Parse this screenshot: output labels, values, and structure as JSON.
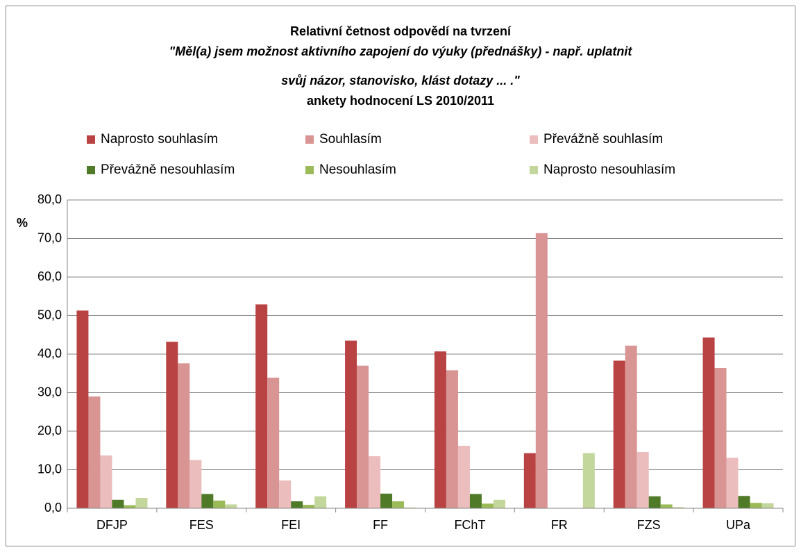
{
  "chart_data": {
    "type": "bar",
    "title": [
      "Relativní četnost odpovědí na tvrzení",
      "\"Měl(a) jsem možnost aktivního zapojení do výuky (přednášky) - např. uplatnit",
      "svůj názor, stanovisko, klást dotazy ... .\"",
      "ankety hodnocení LS 2010/2011"
    ],
    "y_label": "%",
    "categories": [
      "DFJP",
      "FES",
      "FEI",
      "FF",
      "FChT",
      "FR",
      "FZS",
      "UPa"
    ],
    "series": [
      {
        "name": "Naprosto souhlasím",
        "color": "#b94343",
        "values": [
          51.3,
          43.2,
          52.9,
          43.5,
          40.7,
          14.3,
          38.3,
          44.3
        ]
      },
      {
        "name": "Souhlasím",
        "color": "#d99594",
        "values": [
          29.0,
          37.6,
          33.9,
          37.0,
          35.8,
          71.4,
          42.2,
          36.4
        ]
      },
      {
        "name": "Převážně souhlasím",
        "color": "#ebbdbd",
        "values": [
          13.7,
          12.5,
          7.2,
          13.5,
          16.2,
          0,
          14.6,
          13.1
        ]
      },
      {
        "name": "Převážně nesouhlasím",
        "color": "#4f7a28",
        "values": [
          2.2,
          3.7,
          1.8,
          3.8,
          3.7,
          0,
          3.1,
          3.2
        ]
      },
      {
        "name": "Nesouhlasím",
        "color": "#9bbb59",
        "values": [
          0.8,
          2.0,
          0.9,
          1.8,
          1.2,
          0,
          1.0,
          1.4
        ]
      },
      {
        "name": "Naprosto nesouhlasím",
        "color": "#c3d69b",
        "values": [
          2.7,
          1.0,
          3.1,
          0.2,
          2.2,
          14.3,
          0.3,
          1.3
        ]
      }
    ],
    "ylim": [
      0,
      80
    ],
    "yticks": [
      {
        "value": 0,
        "label": "0,0"
      },
      {
        "value": 10,
        "label": "10,0"
      },
      {
        "value": 20,
        "label": "20,0"
      },
      {
        "value": 30,
        "label": "30,0"
      },
      {
        "value": 40,
        "label": "40,0"
      },
      {
        "value": 50,
        "label": "50,0"
      },
      {
        "value": 60,
        "label": "60,0"
      },
      {
        "value": 70,
        "label": "70,0"
      },
      {
        "value": 80,
        "label": "80,0"
      }
    ],
    "grid": true,
    "legend": "top"
  }
}
